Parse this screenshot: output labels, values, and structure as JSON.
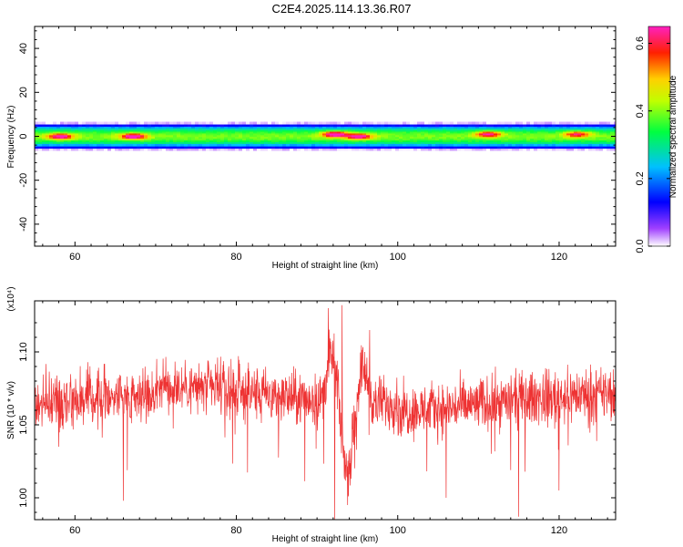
{
  "title": "C2E4.2025.114.13.36.R07",
  "chart_data": [
    {
      "type": "heatmap",
      "xlabel": "Height of straight line (km)",
      "ylabel": "Frequency (Hz)",
      "xlim": [
        55,
        127
      ],
      "ylim": [
        -50,
        50
      ],
      "xticks": [
        "60",
        "80",
        "100",
        "120"
      ],
      "yticks": [
        "-40",
        "-20",
        "0",
        "20",
        "40"
      ],
      "band_center_hz": 0,
      "band_halfwidth_hz": 4,
      "hotspots": [
        {
          "x": 58,
          "f": 0,
          "amp": 0.55
        },
        {
          "x": 67,
          "f": 0,
          "amp": 0.6
        },
        {
          "x": 92,
          "f": 1,
          "amp": 0.62
        },
        {
          "x": 95,
          "f": 0,
          "amp": 0.55
        },
        {
          "x": 111,
          "f": 1,
          "amp": 0.5
        },
        {
          "x": 122,
          "f": 1,
          "amp": 0.45
        }
      ],
      "colorbar": {
        "label": "Normalized spectral amplitude",
        "range": [
          0,
          0.65
        ],
        "ticks": [
          "0.0",
          "0.2",
          "0.4",
          "0.6"
        ]
      }
    },
    {
      "type": "line",
      "xlabel": "Height of straight line (km)",
      "ylabel": "SNR (10 * v/v)",
      "y_multiplier": "(x10⁴)",
      "xlim": [
        55,
        127
      ],
      "ylim": [
        0.985,
        1.135
      ],
      "xticks": [
        "60",
        "80",
        "100",
        "120"
      ],
      "yticks": [
        "1.00",
        "1.05",
        "1.10"
      ],
      "color": "#ee3333",
      "baseline": 1.065,
      "noise_amplitude": 0.018,
      "notable_points": [
        {
          "x": 58,
          "y": 1.035
        },
        {
          "x": 66,
          "y": 0.998
        },
        {
          "x": 91.4,
          "y": 1.13
        },
        {
          "x": 92.2,
          "y": 0.985
        },
        {
          "x": 93.1,
          "y": 1.132
        },
        {
          "x": 93.8,
          "y": 0.995
        },
        {
          "x": 96.5,
          "y": 1.115
        },
        {
          "x": 106,
          "y": 1.0
        },
        {
          "x": 115,
          "y": 0.987
        },
        {
          "x": 120,
          "y": 1.005
        }
      ]
    }
  ]
}
